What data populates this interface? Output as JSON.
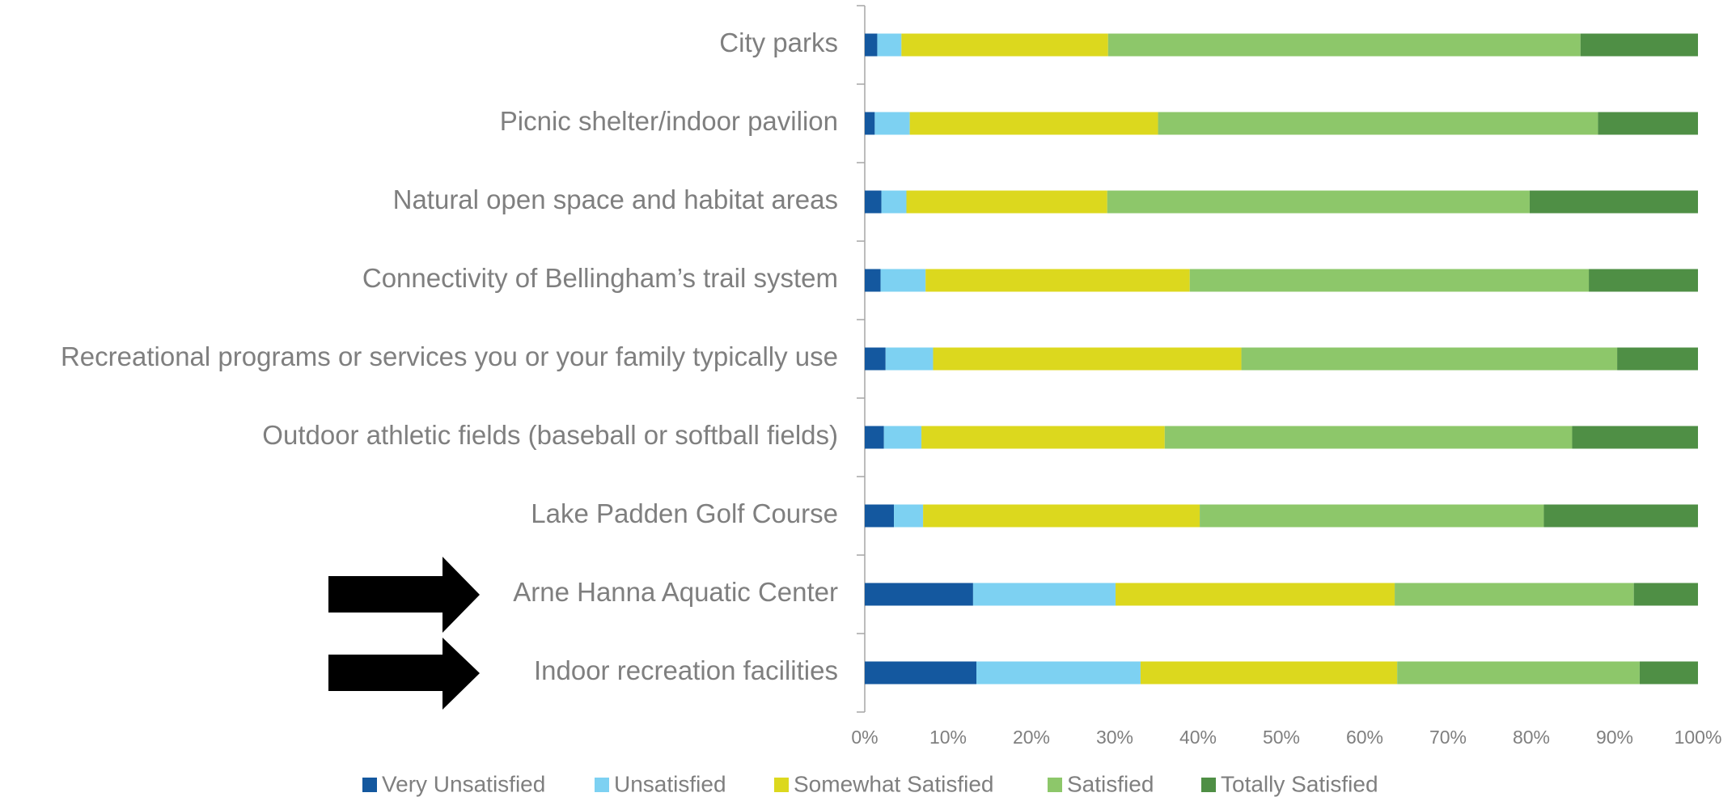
{
  "chart_data": {
    "type": "stacked_barh",
    "categories": [
      "City parks",
      "Picnic shelter/indoor pavilion",
      "Natural open space and habitat areas",
      "Connectivity of Bellingham’s trail system",
      "Recreational programs or services you or your family typically use",
      "Outdoor athletic fields (baseball or softball fields)",
      "Lake Padden Golf Course",
      "Arne Hanna Aquatic Center",
      "Indoor recreation facilities"
    ],
    "series": [
      {
        "name": "Very Unsatisfied",
        "color": "#14589f",
        "values": [
          1.5,
          1.2,
          2.0,
          1.9,
          2.5,
          2.3,
          3.5,
          13.0,
          13.4
        ]
      },
      {
        "name": "Unsatisfied",
        "color": "#7dd1f2",
        "values": [
          2.9,
          4.2,
          3.0,
          5.4,
          5.7,
          4.5,
          3.5,
          17.1,
          19.7
        ]
      },
      {
        "name": "Somewhat Satisfied",
        "color": "#dcd81e",
        "values": [
          24.8,
          29.8,
          24.1,
          31.7,
          37.0,
          29.2,
          33.2,
          33.5,
          30.8
        ]
      },
      {
        "name": "Satisfied",
        "color": "#8dc76a",
        "values": [
          56.7,
          52.8,
          50.7,
          47.9,
          45.1,
          48.9,
          41.3,
          28.7,
          29.1
        ]
      },
      {
        "name": "Totally Satisfied",
        "color": "#4f8f45",
        "values": [
          14.1,
          12.0,
          20.2,
          13.1,
          9.7,
          15.1,
          18.5,
          7.7,
          7.0
        ]
      }
    ],
    "xlim": [
      0,
      100
    ],
    "xticks": [
      {
        "value": 0,
        "label": "0%"
      },
      {
        "value": 10,
        "label": "10%"
      },
      {
        "value": 20,
        "label": "20%"
      },
      {
        "value": 30,
        "label": "30%"
      },
      {
        "value": 40,
        "label": "40%"
      },
      {
        "value": 50,
        "label": "50%"
      },
      {
        "value": 60,
        "label": "60%"
      },
      {
        "value": 70,
        "label": "70%"
      },
      {
        "value": 80,
        "label": "80%"
      },
      {
        "value": 90,
        "label": "90%"
      },
      {
        "value": 100,
        "label": "100%"
      }
    ],
    "legend": "bottom"
  }
}
